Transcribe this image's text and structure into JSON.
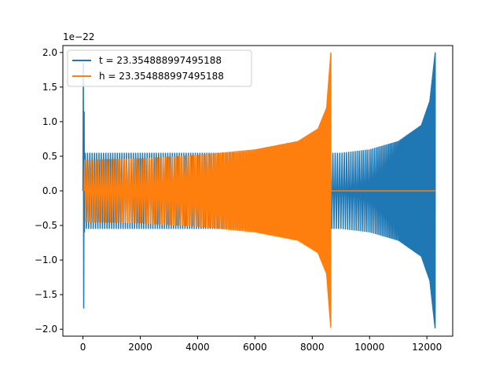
{
  "chart_data": {
    "type": "line",
    "title": "",
    "xlabel": "",
    "ylabel": "",
    "offset_label": "1e−22",
    "xlim": [
      -700,
      12900
    ],
    "ylim": [
      -2.1,
      2.1
    ],
    "x_ticks": [
      0,
      2000,
      4000,
      6000,
      8000,
      10000,
      12000
    ],
    "x_tick_labels": [
      "0",
      "2000",
      "4000",
      "6000",
      "8000",
      "10000",
      "12000"
    ],
    "y_ticks": [
      -2.0,
      -1.5,
      -1.0,
      -0.5,
      0.0,
      0.5,
      1.0,
      1.5,
      2.0
    ],
    "y_tick_labels": [
      "−2.0",
      "−1.5",
      "−1.0",
      "−0.5",
      "0.0",
      "0.5",
      "1.0",
      "1.5",
      "2.0"
    ],
    "grid": false,
    "legend_position": "top-left",
    "series": [
      {
        "name": "t = 23.354888997495188",
        "color": "#1f77b4",
        "x_end": 12290,
        "initial_spike": {
          "x": 0,
          "y_max": 1.85,
          "y_min": -1.7
        },
        "envelope_points": [
          [
            0,
            0.55
          ],
          [
            9000,
            0.55
          ],
          [
            10000,
            0.6
          ],
          [
            11000,
            0.72
          ],
          [
            11800,
            0.95
          ],
          [
            12100,
            1.3
          ],
          [
            12290,
            2.0
          ]
        ],
        "end_min": -1.9
      },
      {
        "name": "h = 23.354888997495188",
        "color": "#ff7f0e",
        "x_end": 8650,
        "envelope_points": [
          [
            0,
            0.45
          ],
          [
            2000,
            0.47
          ],
          [
            4000,
            0.52
          ],
          [
            6000,
            0.6
          ],
          [
            7500,
            0.72
          ],
          [
            8200,
            0.9
          ],
          [
            8500,
            1.2
          ],
          [
            8650,
            2.0
          ]
        ],
        "end_min": -1.9,
        "after_end_value": 0.0,
        "after_end_until": 12290
      }
    ]
  }
}
